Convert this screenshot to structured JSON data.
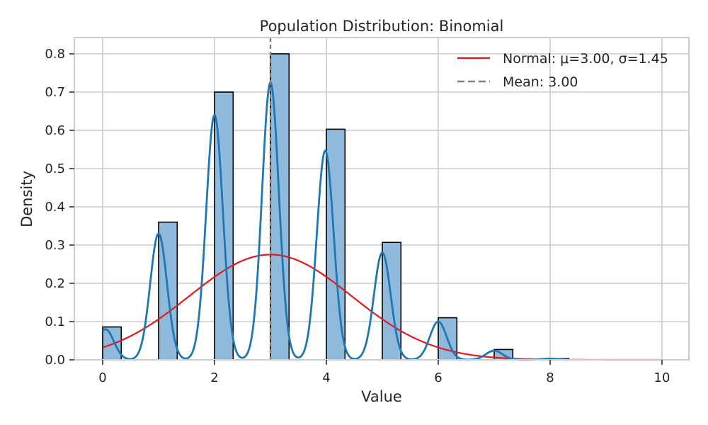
{
  "chart_data": {
    "type": "bar",
    "title": "Population Distribution: Binomial",
    "xlabel": "Value",
    "ylabel": "Density",
    "xlim": [
      -0.5,
      10.5
    ],
    "ylim": [
      0,
      0.84
    ],
    "xticks": [
      0,
      2,
      4,
      6,
      8,
      10
    ],
    "yticks": [
      0.0,
      0.1,
      0.2,
      0.3,
      0.4,
      0.5,
      0.6,
      0.7,
      0.8
    ],
    "grid": true,
    "legend_position": "top-right",
    "histogram": {
      "bin_starts": [
        0,
        1,
        2,
        3,
        4,
        5,
        6,
        7,
        8
      ],
      "bin_width": 0.333,
      "values": [
        0.086,
        0.36,
        0.7,
        0.8,
        0.603,
        0.307,
        0.11,
        0.027,
        0.003
      ],
      "fill_color": "#8fbadc",
      "edge_color": "#000000"
    },
    "kde": {
      "color": "#1f77b4",
      "peak_x": [
        0.05,
        1.0,
        2.0,
        3.0,
        3.98,
        5.0,
        6.0,
        7.0,
        8.0
      ],
      "peak_y": [
        0.08,
        0.33,
        0.64,
        0.725,
        0.547,
        0.28,
        0.1,
        0.024,
        0.003
      ],
      "sigma": 0.15
    },
    "series": [
      {
        "name": "Normal: μ=3.00, σ=1.45",
        "type": "line",
        "mu": 3.0,
        "sigma": 1.45,
        "x_range": [
          0,
          10
        ],
        "color": "#e31a1c"
      },
      {
        "name": "Mean: 3.00",
        "type": "vline",
        "x": 3.0,
        "color": "#808080",
        "dashed": true
      }
    ]
  }
}
